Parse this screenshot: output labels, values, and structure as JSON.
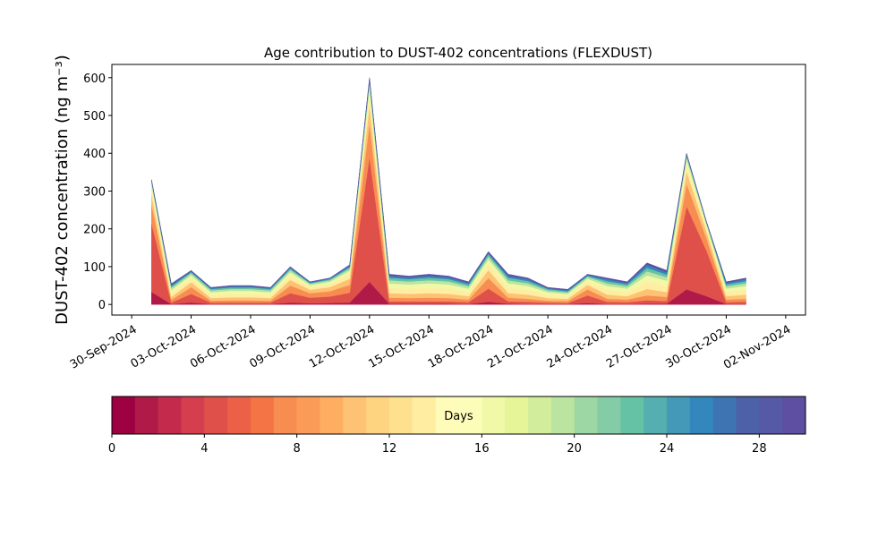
{
  "chart_data": {
    "type": "stacked-area",
    "title": "Age contribution to DUST-402 concentrations (FLEXDUST)",
    "ylabel": "DUST-402 concentration (ng m⁻³)",
    "x": [
      "2024-10-01",
      "2024-10-02",
      "2024-10-03",
      "2024-10-04",
      "2024-10-05",
      "2024-10-06",
      "2024-10-07",
      "2024-10-08",
      "2024-10-09",
      "2024-10-10",
      "2024-10-11",
      "2024-10-12",
      "2024-10-13",
      "2024-10-14",
      "2024-10-15",
      "2024-10-16",
      "2024-10-17",
      "2024-10-18",
      "2024-10-19",
      "2024-10-20",
      "2024-10-21",
      "2024-10-22",
      "2024-10-23",
      "2024-10-24",
      "2024-10-25",
      "2024-10-26",
      "2024-10-27",
      "2024-10-28",
      "2024-10-29",
      "2024-10-30",
      "2024-10-31"
    ],
    "series": [
      {
        "color": "#b01a48",
        "values": [
          33,
          1,
          5,
          1,
          1,
          1,
          1,
          5,
          3,
          4,
          5,
          60,
          2,
          2,
          2,
          2,
          1,
          7,
          2,
          1,
          1,
          1,
          4,
          1,
          1,
          2,
          2,
          40,
          22,
          1,
          1
        ]
      },
      {
        "color": "#e0504a",
        "values": [
          182,
          4,
          23,
          4,
          4,
          4,
          4,
          25,
          15,
          17,
          26,
          330,
          6,
          6,
          6,
          6,
          5,
          35,
          6,
          6,
          4,
          3,
          20,
          6,
          5,
          9,
          7,
          220,
          121,
          5,
          6
        ]
      },
      {
        "color": "#f88d52",
        "values": [
          50,
          7,
          18,
          5,
          6,
          6,
          5,
          20,
          12,
          14,
          21,
          90,
          10,
          9,
          10,
          9,
          7,
          28,
          10,
          8,
          5,
          5,
          16,
          8,
          7,
          13,
          11,
          60,
          33,
          7,
          8
        ]
      },
      {
        "color": "#fdc274",
        "values": [
          26,
          8,
          13,
          7,
          8,
          8,
          7,
          15,
          9,
          11,
          16,
          48,
          12,
          11,
          12,
          11,
          9,
          21,
          12,
          11,
          7,
          6,
          12,
          11,
          9,
          17,
          13,
          32,
          18,
          9,
          11
        ]
      },
      {
        "color": "#ffeea1",
        "values": [
          17,
          10,
          11,
          8,
          9,
          9,
          8,
          12,
          7,
          8,
          13,
          30,
          14,
          14,
          14,
          14,
          11,
          17,
          14,
          13,
          8,
          7,
          10,
          13,
          11,
          20,
          16,
          20,
          11,
          11,
          13
        ]
      },
      {
        "color": "#f1f9a9",
        "values": [
          10,
          8,
          7,
          7,
          8,
          8,
          7,
          8,
          5,
          6,
          8,
          18,
          12,
          11,
          12,
          11,
          9,
          11,
          12,
          10,
          7,
          6,
          6,
          10,
          9,
          16,
          14,
          12,
          7,
          9,
          10
        ]
      },
      {
        "color": "#bbe4a0",
        "values": [
          7,
          6,
          5,
          5,
          5,
          5,
          5,
          6,
          4,
          4,
          6,
          12,
          8,
          8,
          8,
          8,
          6,
          8,
          8,
          7,
          5,
          4,
          5,
          7,
          6,
          11,
          9,
          8,
          4,
          6,
          7
        ]
      },
      {
        "color": "#66c2a5",
        "values": [
          3,
          4,
          4,
          4,
          4,
          4,
          4,
          4,
          2,
          3,
          4,
          6,
          7,
          6,
          7,
          6,
          5,
          6,
          7,
          6,
          4,
          3,
          3,
          6,
          5,
          9,
          7,
          4,
          2,
          5,
          6
        ]
      },
      {
        "color": "#3288bd",
        "values": [
          1,
          4,
          2,
          2,
          3,
          3,
          2,
          3,
          2,
          2,
          4,
          3,
          5,
          5,
          5,
          5,
          4,
          4,
          5,
          5,
          2,
          3,
          2,
          5,
          4,
          8,
          6,
          2,
          1,
          4,
          5
        ]
      },
      {
        "color": "#5e4fa2",
        "values": [
          1,
          3,
          2,
          2,
          2,
          2,
          2,
          2,
          1,
          1,
          2,
          3,
          4,
          3,
          4,
          3,
          3,
          3,
          4,
          3,
          2,
          2,
          2,
          3,
          3,
          5,
          5,
          2,
          1,
          3,
          3
        ]
      }
    ],
    "xlim": [
      "2024-09-29",
      "2024-11-03"
    ],
    "xticks": [
      {
        "value": "2024-09-30",
        "label": "30-Sep-2024"
      },
      {
        "value": "2024-10-03",
        "label": "03-Oct-2024"
      },
      {
        "value": "2024-10-06",
        "label": "06-Oct-2024"
      },
      {
        "value": "2024-10-09",
        "label": "09-Oct-2024"
      },
      {
        "value": "2024-10-12",
        "label": "12-Oct-2024"
      },
      {
        "value": "2024-10-15",
        "label": "15-Oct-2024"
      },
      {
        "value": "2024-10-18",
        "label": "18-Oct-2024"
      },
      {
        "value": "2024-10-21",
        "label": "21-Oct-2024"
      },
      {
        "value": "2024-10-24",
        "label": "24-Oct-2024"
      },
      {
        "value": "2024-10-27",
        "label": "27-Oct-2024"
      },
      {
        "value": "2024-10-30",
        "label": "30-Oct-2024"
      },
      {
        "value": "2024-11-02",
        "label": "02-Nov-2024"
      }
    ],
    "ylim": [
      -28,
      635
    ],
    "yticks": [
      0,
      100,
      200,
      300,
      400,
      500,
      600
    ],
    "colorbar": {
      "label": "Days",
      "lim": [
        0,
        30
      ],
      "ticks": [
        0,
        4,
        8,
        12,
        16,
        20,
        24,
        28
      ],
      "colors": [
        "#9e0142",
        "#b01a48",
        "#c42a4c",
        "#d53e4f",
        "#e0504a",
        "#eb6046",
        "#f57446",
        "#f88d52",
        "#fa9c58",
        "#fdae61",
        "#fdc274",
        "#fed481",
        "#fee18f",
        "#ffeea1",
        "#fffbb8",
        "#fbfdb9",
        "#f1f9a9",
        "#e6f598",
        "#d2ed9b",
        "#bbe4a0",
        "#9dd7a4",
        "#83cca5",
        "#66c2a5",
        "#55aeaf",
        "#4499b9",
        "#3288bd",
        "#3f74b2",
        "#4d61a9",
        "#5559a6",
        "#5e4fa2"
      ]
    }
  }
}
